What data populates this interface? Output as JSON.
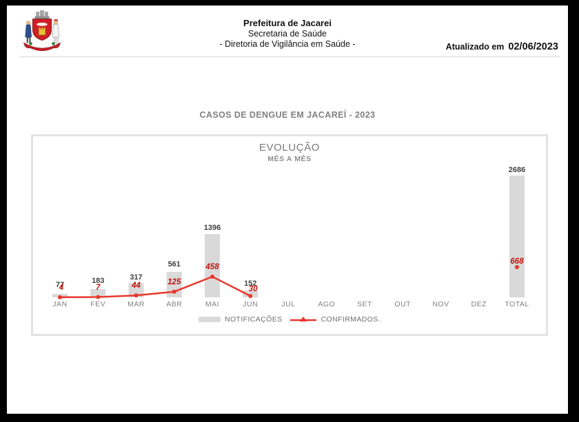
{
  "header": {
    "title": "Prefeitura de Jacarei",
    "subtitle1": "Secretaria de Saúde",
    "subtitle2": "- Diretoria de Vigilância em Saúde -",
    "updated_label": "Atualizado em",
    "updated_date": "02/06/2023"
  },
  "section_title": "CASOS DE DENGUE EM JACAREÍ - 2023",
  "chart_data": {
    "type": "bar",
    "title": "EVOLUÇÃO",
    "subtitle": "MÊS A MÊS",
    "categories": [
      "JAN",
      "FEV",
      "MAR",
      "ABR",
      "MAI",
      "JUN",
      "JUL",
      "AGO",
      "SET",
      "OUT",
      "NOV",
      "DEZ",
      "TOTAL"
    ],
    "series": [
      {
        "name": "NOTIFICAÇÕES",
        "type": "bar",
        "color": "#d9d9d9",
        "label_color": "#3f3f3f",
        "values": [
          77,
          183,
          317,
          561,
          1396,
          152,
          null,
          null,
          null,
          null,
          null,
          null,
          2686
        ]
      },
      {
        "name": "CONFIRMADOS.",
        "type": "line",
        "color": "#e8372c",
        "label_color": "#c3130b",
        "values": [
          4,
          7,
          44,
          125,
          458,
          30,
          null,
          null,
          null,
          null,
          null,
          null,
          668
        ]
      }
    ],
    "ylim": [
      0,
      2686
    ],
    "grid": false,
    "legend_position": "bottom",
    "notes": "Line connects JAN-JUN only; TOTAL shown as isolated marker"
  }
}
